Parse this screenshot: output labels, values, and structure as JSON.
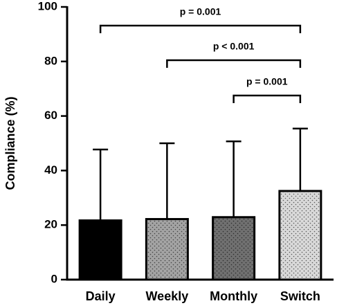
{
  "chart_data": {
    "type": "bar",
    "y_label": "Compliance (%)",
    "categories": [
      "Daily",
      "Weekly",
      "Monthly",
      "Switch"
    ],
    "values": [
      21.7,
      22.2,
      22.9,
      32.5
    ],
    "errors": [
      26,
      27.8,
      27.8,
      22.9
    ],
    "colors": [
      "#000000",
      "#a3a3a3",
      "#707070",
      "#d9d9d9"
    ],
    "ylim": [
      0,
      100
    ],
    "yticks": [
      0,
      20,
      40,
      60,
      80,
      100
    ],
    "annotations": [
      {
        "text": "p = 0.001",
        "categories": [
          "Daily",
          "Switch"
        ]
      },
      {
        "text": "p < 0.001",
        "categories": [
          "Weekly",
          "Switch"
        ]
      },
      {
        "text": "p = 0.001",
        "categories": [
          "Monthly",
          "Switch"
        ]
      }
    ]
  }
}
